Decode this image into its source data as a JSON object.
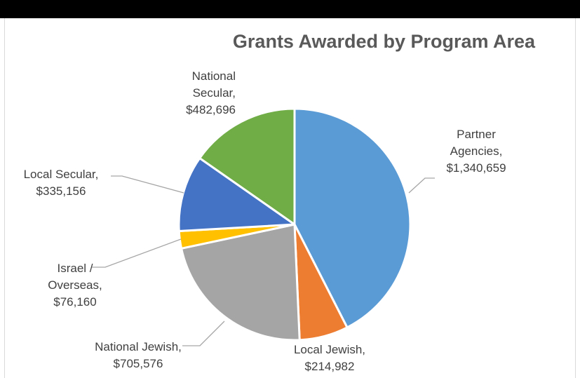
{
  "chart_data": {
    "type": "pie",
    "title": "Grants Awarded by Program Area",
    "slices": [
      {
        "label": "Partner Agencies",
        "value": 1340659,
        "value_label": "$1,340,659",
        "color": "#5b9bd5"
      },
      {
        "label": "Local Jewish",
        "value": 214982,
        "value_label": "$214,982",
        "color": "#ed7d31"
      },
      {
        "label": "National Jewish",
        "value": 705576,
        "value_label": "$705,576",
        "color": "#a5a5a5"
      },
      {
        "label": "Israel / Overseas",
        "value": 76160,
        "value_label": "$76,160",
        "color": "#ffc000"
      },
      {
        "label": "Local Secular",
        "value": 335156,
        "value_label": "$335,156",
        "color": "#4472c4"
      },
      {
        "label": "National Secular",
        "value": 482696,
        "value_label": "$482,696",
        "color": "#70ad47"
      }
    ],
    "label_lines": {
      "partner_l1": "Partner",
      "partner_l2": "Agencies,",
      "localjewish_l1": "Local Jewish,",
      "natjewish_l1": "National Jewish,",
      "israel_l1": "Israel /",
      "israel_l2": "Overseas,",
      "localsec_l1": "Local Secular,",
      "natsec_l1": "National",
      "natsec_l2": "Secular,"
    }
  }
}
